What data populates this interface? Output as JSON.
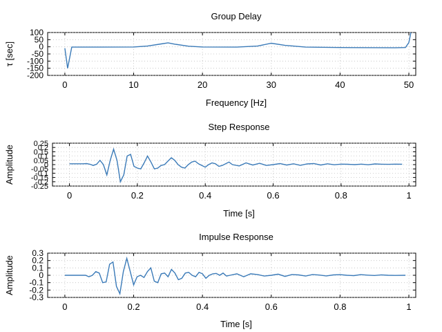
{
  "chart_data": [
    {
      "type": "line",
      "title": "Group Delay",
      "xlabel": "Frequency [Hz]",
      "ylabel": "τ [sec]",
      "xlim": [
        -2.5,
        51
      ],
      "ylim": [
        -200,
        100
      ],
      "xticks": [
        0,
        10,
        20,
        30,
        40,
        50
      ],
      "xtick_labels": [
        "0",
        "10",
        "20",
        "30",
        "40",
        "50"
      ],
      "yticks": [
        -200,
        -150,
        -100,
        -50,
        0,
        50,
        100
      ],
      "ytick_labels": [
        "-200",
        "-150",
        "-100",
        "-50",
        "0",
        "50",
        "100"
      ],
      "grid": true,
      "color": "#3a7ab8",
      "series": [
        {
          "x": [
            0,
            0.4,
            1,
            5,
            10,
            12,
            14,
            15,
            16,
            18,
            20,
            25,
            28,
            30,
            32,
            35,
            40,
            45,
            48,
            49.5,
            50,
            50.3
          ],
          "y": [
            -10,
            -150,
            -2,
            -2,
            -1,
            5,
            20,
            28,
            18,
            4,
            -1,
            -2,
            5,
            25,
            10,
            -2,
            -5,
            -6,
            -7,
            -5,
            30,
            100
          ]
        }
      ]
    },
    {
      "type": "line",
      "title": "Step Response",
      "xlabel": "Time [s]",
      "ylabel": "Amplitude",
      "xlim": [
        -0.05,
        1.02
      ],
      "ylim": [
        -0.25,
        0.25
      ],
      "xticks": [
        0,
        0.2,
        0.4,
        0.6,
        0.8,
        1
      ],
      "xtick_labels": [
        "0",
        "0.2",
        "0.4",
        "0.6",
        "0.8",
        "1"
      ],
      "yticks": [
        -0.25,
        -0.2,
        -0.15,
        -0.1,
        -0.05,
        0,
        0.05,
        0.1,
        0.15,
        0.2,
        0.25
      ],
      "ytick_labels": [
        "-0.25",
        "-0.2",
        "-0.15",
        "-0.1",
        "-0.05",
        "0",
        "0.05",
        "0.1",
        "0.15",
        "0.2",
        "0.25"
      ],
      "grid": true,
      "color": "#3a7ab8",
      "series": [
        {
          "x": [
            0,
            0.04,
            0.05,
            0.06,
            0.07,
            0.08,
            0.09,
            0.1,
            0.11,
            0.12,
            0.13,
            0.14,
            0.15,
            0.16,
            0.17,
            0.18,
            0.19,
            0.2,
            0.21,
            0.22,
            0.23,
            0.24,
            0.25,
            0.26,
            0.27,
            0.28,
            0.29,
            0.3,
            0.31,
            0.32,
            0.33,
            0.34,
            0.35,
            0.36,
            0.37,
            0.38,
            0.39,
            0.4,
            0.41,
            0.42,
            0.43,
            0.44,
            0.45,
            0.46,
            0.47,
            0.48,
            0.5,
            0.52,
            0.54,
            0.56,
            0.58,
            0.6,
            0.62,
            0.64,
            0.66,
            0.68,
            0.7,
            0.72,
            0.74,
            0.76,
            0.78,
            0.8,
            0.82,
            0.84,
            0.86,
            0.88,
            0.9,
            0.92,
            0.94,
            0.96,
            0.98
          ],
          "y": [
            0.01,
            0.01,
            0.012,
            0.005,
            -0.01,
            0.005,
            0.05,
            0.0,
            -0.12,
            0.05,
            0.18,
            0.05,
            -0.2,
            -0.12,
            0.1,
            0.12,
            -0.02,
            -0.04,
            -0.05,
            0.02,
            0.1,
            0.03,
            -0.05,
            -0.04,
            -0.01,
            0.0,
            0.04,
            0.08,
            0.05,
            0.0,
            -0.03,
            -0.04,
            0.0,
            0.03,
            0.04,
            0.01,
            -0.01,
            -0.03,
            0.0,
            0.02,
            0.01,
            -0.02,
            -0.01,
            0.01,
            0.03,
            0.0,
            -0.015,
            0.02,
            -0.005,
            0.015,
            -0.01,
            0.0,
            0.012,
            -0.005,
            0.01,
            -0.008,
            0.008,
            0.012,
            -0.005,
            0.01,
            -0.002,
            0.006,
            0.004,
            0.0,
            0.006,
            -0.002,
            0.008,
            0.005,
            0.003,
            0.006,
            0.005
          ]
        }
      ]
    },
    {
      "type": "line",
      "title": "Impulse Response",
      "xlabel": "Time [s]",
      "ylabel": "Amplitude",
      "xlim": [
        -0.05,
        1.02
      ],
      "ylim": [
        -0.3,
        0.3
      ],
      "xticks": [
        0,
        0.2,
        0.4,
        0.6,
        0.8,
        1
      ],
      "xtick_labels": [
        "0",
        "0.2",
        "0.4",
        "0.6",
        "0.8",
        "1"
      ],
      "yticks": [
        -0.3,
        -0.2,
        -0.1,
        0,
        0.1,
        0.2,
        0.3
      ],
      "ytick_labels": [
        "-0.3",
        "-0.2",
        "-0.1",
        "0",
        "0.1",
        "0.2",
        "0.3"
      ],
      "grid": true,
      "color": "#3a7ab8",
      "series": [
        {
          "x": [
            0,
            0.04,
            0.06,
            0.07,
            0.08,
            0.09,
            0.1,
            0.11,
            0.12,
            0.13,
            0.14,
            0.15,
            0.16,
            0.17,
            0.18,
            0.19,
            0.2,
            0.21,
            0.22,
            0.23,
            0.24,
            0.25,
            0.26,
            0.27,
            0.28,
            0.29,
            0.3,
            0.31,
            0.32,
            0.33,
            0.34,
            0.35,
            0.36,
            0.37,
            0.38,
            0.39,
            0.4,
            0.41,
            0.42,
            0.43,
            0.44,
            0.45,
            0.46,
            0.47,
            0.48,
            0.5,
            0.52,
            0.54,
            0.56,
            0.58,
            0.6,
            0.62,
            0.64,
            0.66,
            0.68,
            0.7,
            0.72,
            0.74,
            0.76,
            0.78,
            0.8,
            0.82,
            0.84,
            0.86,
            0.88,
            0.9,
            0.92,
            0.94,
            0.96,
            0.99
          ],
          "y": [
            0.0,
            0.0,
            0.0,
            -0.02,
            0.0,
            0.05,
            0.03,
            -0.1,
            -0.09,
            0.15,
            0.18,
            -0.15,
            -0.25,
            0.05,
            0.23,
            0.05,
            -0.13,
            -0.02,
            0.0,
            -0.03,
            0.05,
            0.1,
            -0.08,
            -0.1,
            0.02,
            0.03,
            -0.02,
            0.08,
            0.03,
            -0.06,
            -0.04,
            0.03,
            0.04,
            0.0,
            -0.02,
            0.04,
            0.02,
            -0.04,
            0.0,
            0.02,
            0.025,
            0.0,
            0.03,
            -0.01,
            0.0,
            0.02,
            -0.02,
            0.02,
            0.01,
            -0.01,
            0.0,
            0.015,
            -0.015,
            0.01,
            0.005,
            -0.01,
            0.01,
            0.003,
            -0.008,
            0.005,
            0.008,
            0.0,
            -0.005,
            0.008,
            0.002,
            -0.003,
            0.006,
            0.0,
            -0.002,
            0.0
          ]
        }
      ]
    }
  ]
}
